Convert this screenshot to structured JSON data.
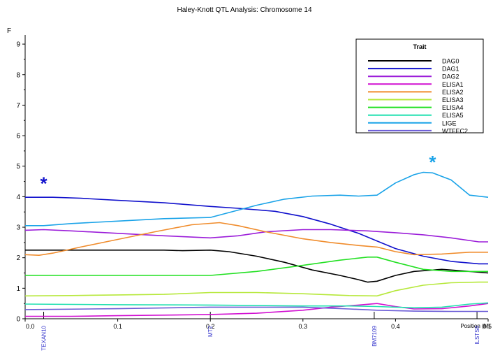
{
  "chart_data": {
    "type": "line",
    "title": "Haley-Knott QTL Analysis: Chromosome 14",
    "ylabel": "F",
    "xlabel": "Position (M)",
    "xlim": [
      0,
      0.5
    ],
    "ylim": [
      0,
      9.3
    ],
    "x_ticks": [
      "0.0",
      "0.1",
      "0.2",
      "0.3",
      "0.4",
      "0.5"
    ],
    "x_tick_values": [
      0,
      0.1,
      0.2,
      0.3,
      0.4,
      0.5
    ],
    "y_ticks": [
      "0",
      "1",
      "2",
      "3",
      "4",
      "5",
      "6",
      "7",
      "8",
      "9"
    ],
    "y_tick_values": [
      0,
      1,
      2,
      3,
      4,
      5,
      6,
      7,
      8,
      9
    ],
    "grid": false,
    "legend": {
      "title": "Trait",
      "placement": "top-right"
    },
    "markers": [
      {
        "name": "TEXAN10",
        "x": 0.02
      },
      {
        "name": "MT2",
        "x": 0.2
      },
      {
        "name": "BM7109",
        "x": 0.377
      },
      {
        "name": "ILSTS8",
        "x": 0.488
      }
    ],
    "annotations": [
      {
        "text": "*",
        "x": 0.02,
        "y": 4.5,
        "color": "#1010cc"
      },
      {
        "text": "*",
        "x": 0.44,
        "y": 5.2,
        "color": "#1aa3e8"
      }
    ],
    "series": [
      {
        "name": "DAG0",
        "color": "#000000",
        "x": [
          0,
          0.05,
          0.1,
          0.15,
          0.17,
          0.2,
          0.22,
          0.25,
          0.28,
          0.31,
          0.34,
          0.36,
          0.37,
          0.38,
          0.4,
          0.42,
          0.45,
          0.48,
          0.5
        ],
        "y": [
          2.25,
          2.25,
          2.25,
          2.25,
          2.23,
          2.25,
          2.2,
          2.05,
          1.85,
          1.6,
          1.42,
          1.28,
          1.2,
          1.23,
          1.42,
          1.55,
          1.62,
          1.55,
          1.5
        ]
      },
      {
        "name": "DAG1",
        "color": "#1010cc",
        "x": [
          0,
          0.03,
          0.06,
          0.1,
          0.15,
          0.2,
          0.23,
          0.27,
          0.3,
          0.33,
          0.36,
          0.38,
          0.4,
          0.43,
          0.46,
          0.49,
          0.5
        ],
        "y": [
          3.98,
          3.98,
          3.95,
          3.88,
          3.8,
          3.68,
          3.62,
          3.52,
          3.35,
          3.1,
          2.8,
          2.55,
          2.3,
          2.05,
          1.88,
          1.8,
          1.8
        ]
      },
      {
        "name": "DAG2",
        "color": "#9b1dd9",
        "x": [
          0,
          0.02,
          0.05,
          0.1,
          0.15,
          0.2,
          0.23,
          0.26,
          0.3,
          0.33,
          0.37,
          0.4,
          0.43,
          0.46,
          0.49,
          0.5
        ],
        "y": [
          2.9,
          2.92,
          2.88,
          2.8,
          2.72,
          2.65,
          2.72,
          2.85,
          2.92,
          2.92,
          2.88,
          2.82,
          2.75,
          2.65,
          2.52,
          2.52
        ]
      },
      {
        "name": "ELISA1",
        "color": "#d10fd1",
        "x": [
          0,
          0.05,
          0.1,
          0.15,
          0.2,
          0.25,
          0.3,
          0.33,
          0.36,
          0.38,
          0.4,
          0.42,
          0.45,
          0.48,
          0.5
        ],
        "y": [
          0.08,
          0.08,
          0.1,
          0.12,
          0.14,
          0.18,
          0.28,
          0.38,
          0.45,
          0.5,
          0.4,
          0.32,
          0.33,
          0.42,
          0.5
        ]
      },
      {
        "name": "ELISA2",
        "color": "#f08c2c",
        "x": [
          0,
          0.015,
          0.03,
          0.06,
          0.1,
          0.14,
          0.18,
          0.21,
          0.23,
          0.26,
          0.3,
          0.33,
          0.36,
          0.38,
          0.4,
          0.42,
          0.45,
          0.48,
          0.5
        ],
        "y": [
          2.1,
          2.08,
          2.15,
          2.35,
          2.6,
          2.85,
          3.08,
          3.15,
          3.05,
          2.85,
          2.62,
          2.5,
          2.4,
          2.35,
          2.2,
          2.1,
          2.12,
          2.18,
          2.18
        ]
      },
      {
        "name": "ELISA3",
        "color": "#b6e83a",
        "x": [
          0,
          0.05,
          0.1,
          0.15,
          0.2,
          0.25,
          0.3,
          0.35,
          0.38,
          0.4,
          0.43,
          0.46,
          0.49,
          0.5
        ],
        "y": [
          0.75,
          0.76,
          0.78,
          0.8,
          0.86,
          0.86,
          0.82,
          0.76,
          0.75,
          0.92,
          1.1,
          1.18,
          1.2,
          1.2
        ]
      },
      {
        "name": "ELISA4",
        "color": "#22e022",
        "x": [
          0,
          0.05,
          0.1,
          0.15,
          0.2,
          0.25,
          0.3,
          0.34,
          0.37,
          0.38,
          0.4,
          0.43,
          0.46,
          0.5
        ],
        "y": [
          1.42,
          1.42,
          1.42,
          1.42,
          1.42,
          1.55,
          1.75,
          1.92,
          2.02,
          2.02,
          1.85,
          1.62,
          1.55,
          1.55
        ]
      },
      {
        "name": "ELISA5",
        "color": "#22e0b0",
        "x": [
          0,
          0.1,
          0.2,
          0.3,
          0.35,
          0.38,
          0.4,
          0.42,
          0.45,
          0.48,
          0.5
        ],
        "y": [
          0.48,
          0.46,
          0.45,
          0.42,
          0.42,
          0.4,
          0.38,
          0.36,
          0.38,
          0.48,
          0.52
        ]
      },
      {
        "name": "LIGE",
        "color": "#1aa3e8",
        "x": [
          0,
          0.02,
          0.05,
          0.1,
          0.15,
          0.2,
          0.22,
          0.25,
          0.28,
          0.31,
          0.34,
          0.36,
          0.38,
          0.4,
          0.42,
          0.43,
          0.44,
          0.46,
          0.48,
          0.5
        ],
        "y": [
          3.05,
          3.05,
          3.12,
          3.2,
          3.28,
          3.32,
          3.48,
          3.72,
          3.92,
          4.02,
          4.05,
          4.02,
          4.05,
          4.45,
          4.72,
          4.8,
          4.78,
          4.55,
          4.05,
          3.98
        ]
      },
      {
        "name": "WTFEC2",
        "color": "#6b5cd6",
        "x": [
          0,
          0.1,
          0.2,
          0.3,
          0.35,
          0.38,
          0.42,
          0.46,
          0.5
        ],
        "y": [
          0.3,
          0.33,
          0.38,
          0.38,
          0.32,
          0.28,
          0.25,
          0.24,
          0.24
        ]
      }
    ]
  }
}
